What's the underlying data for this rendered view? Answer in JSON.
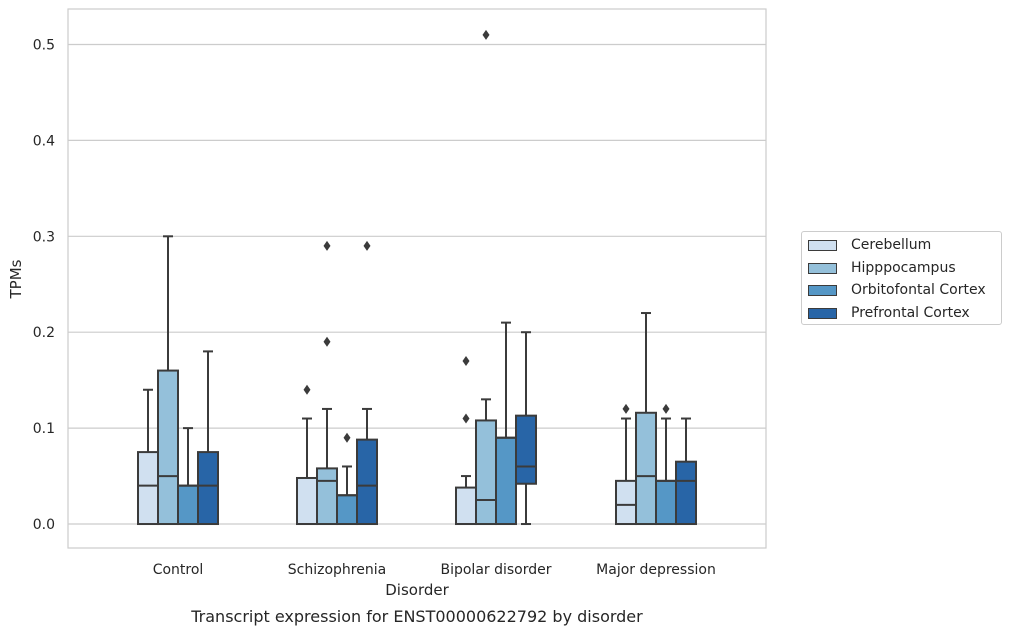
{
  "chart_data": {
    "type": "box",
    "title": "",
    "xlabel": "Disorder",
    "ylabel": "TPMs",
    "caption": "Transcript expression for ENST00000622792 by disorder",
    "ylim": [
      -0.025,
      0.537
    ],
    "yticks": [
      0.0,
      0.1,
      0.2,
      0.3,
      0.4,
      0.5
    ],
    "ytick_labels": [
      "0.0",
      "0.1",
      "0.2",
      "0.3",
      "0.4",
      "0.5"
    ],
    "grid": true,
    "legend_position": "right-outside",
    "categories": [
      "Control",
      "Schizophrenia",
      "Bipolar disorder",
      "Major depression"
    ],
    "series": [
      {
        "name": "Cerebellum",
        "color": "#d0e0f0",
        "boxes": [
          {
            "whisker_low": 0.0,
            "q1": 0.0,
            "median": 0.04,
            "q3": 0.075,
            "whisker_high": 0.14,
            "outliers": []
          },
          {
            "whisker_low": 0.0,
            "q1": 0.0,
            "median": 0.0,
            "q3": 0.048,
            "whisker_high": 0.11,
            "outliers": [
              0.14
            ]
          },
          {
            "whisker_low": 0.0,
            "q1": 0.0,
            "median": 0.0,
            "q3": 0.038,
            "whisker_high": 0.05,
            "outliers": [
              0.11,
              0.17
            ]
          },
          {
            "whisker_low": 0.0,
            "q1": 0.0,
            "median": 0.02,
            "q3": 0.045,
            "whisker_high": 0.11,
            "outliers": [
              0.12
            ]
          }
        ]
      },
      {
        "name": "Hipppocampus",
        "color": "#94c0da",
        "boxes": [
          {
            "whisker_low": 0.0,
            "q1": 0.0,
            "median": 0.05,
            "q3": 0.16,
            "whisker_high": 0.3,
            "outliers": []
          },
          {
            "whisker_low": 0.0,
            "q1": 0.0,
            "median": 0.045,
            "q3": 0.058,
            "whisker_high": 0.12,
            "outliers": [
              0.19,
              0.29
            ]
          },
          {
            "whisker_low": 0.0,
            "q1": 0.0,
            "median": 0.025,
            "q3": 0.108,
            "whisker_high": 0.13,
            "outliers": [
              0.51
            ]
          },
          {
            "whisker_low": 0.0,
            "q1": 0.0,
            "median": 0.05,
            "q3": 0.116,
            "whisker_high": 0.22,
            "outliers": []
          }
        ]
      },
      {
        "name": "Orbitofontal Cortex",
        "color": "#5597c6",
        "boxes": [
          {
            "whisker_low": 0.0,
            "q1": 0.0,
            "median": 0.04,
            "q3": 0.04,
            "whisker_high": 0.1,
            "outliers": []
          },
          {
            "whisker_low": 0.0,
            "q1": 0.0,
            "median": 0.03,
            "q3": 0.03,
            "whisker_high": 0.06,
            "outliers": [
              0.09
            ]
          },
          {
            "whisker_low": 0.0,
            "q1": 0.0,
            "median": 0.09,
            "q3": 0.09,
            "whisker_high": 0.21,
            "outliers": []
          },
          {
            "whisker_low": 0.0,
            "q1": 0.0,
            "median": 0.045,
            "q3": 0.045,
            "whisker_high": 0.11,
            "outliers": [
              0.12
            ]
          }
        ]
      },
      {
        "name": "Prefrontal Cortex",
        "color": "#2865a7",
        "boxes": [
          {
            "whisker_low": 0.0,
            "q1": 0.0,
            "median": 0.04,
            "q3": 0.075,
            "whisker_high": 0.18,
            "outliers": []
          },
          {
            "whisker_low": 0.0,
            "q1": 0.0,
            "median": 0.04,
            "q3": 0.088,
            "whisker_high": 0.12,
            "outliers": [
              0.29
            ]
          },
          {
            "whisker_low": 0.0,
            "q1": 0.042,
            "median": 0.06,
            "q3": 0.113,
            "whisker_high": 0.2,
            "outliers": []
          },
          {
            "whisker_low": 0.0,
            "q1": 0.0,
            "median": 0.045,
            "q3": 0.065,
            "whisker_high": 0.11,
            "outliers": []
          }
        ]
      }
    ]
  }
}
